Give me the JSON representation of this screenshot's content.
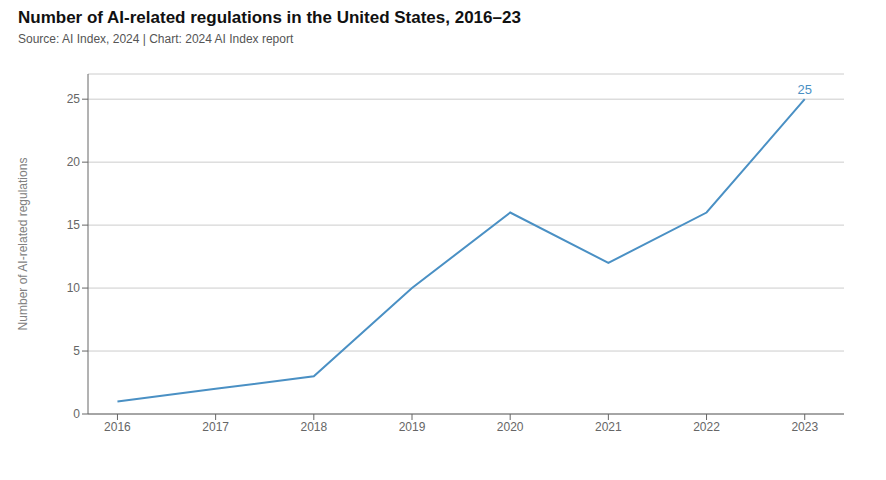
{
  "chart_data": {
    "type": "line",
    "title": "Number of AI-related regulations in the United States, 2016–23",
    "subtitle": "Source: AI Index, 2024 | Chart: 2024 AI Index report",
    "ylabel": "Number of AI-related regulations",
    "x": [
      2016,
      2017,
      2018,
      2019,
      2020,
      2021,
      2022,
      2023
    ],
    "values": [
      1,
      2,
      3,
      10,
      16,
      12,
      16,
      25
    ],
    "color": "#4a90c4",
    "xlim": [
      2015.7,
      2023.4
    ],
    "xticks": [
      2016,
      2017,
      2018,
      2019,
      2020,
      2021,
      2022,
      2023
    ],
    "ylim": [
      0,
      27
    ],
    "yticks": [
      0,
      5,
      10,
      15,
      20,
      25
    ],
    "grid": "y",
    "annotations": [
      {
        "text": "25",
        "x": 2023,
        "y": 25
      }
    ]
  }
}
